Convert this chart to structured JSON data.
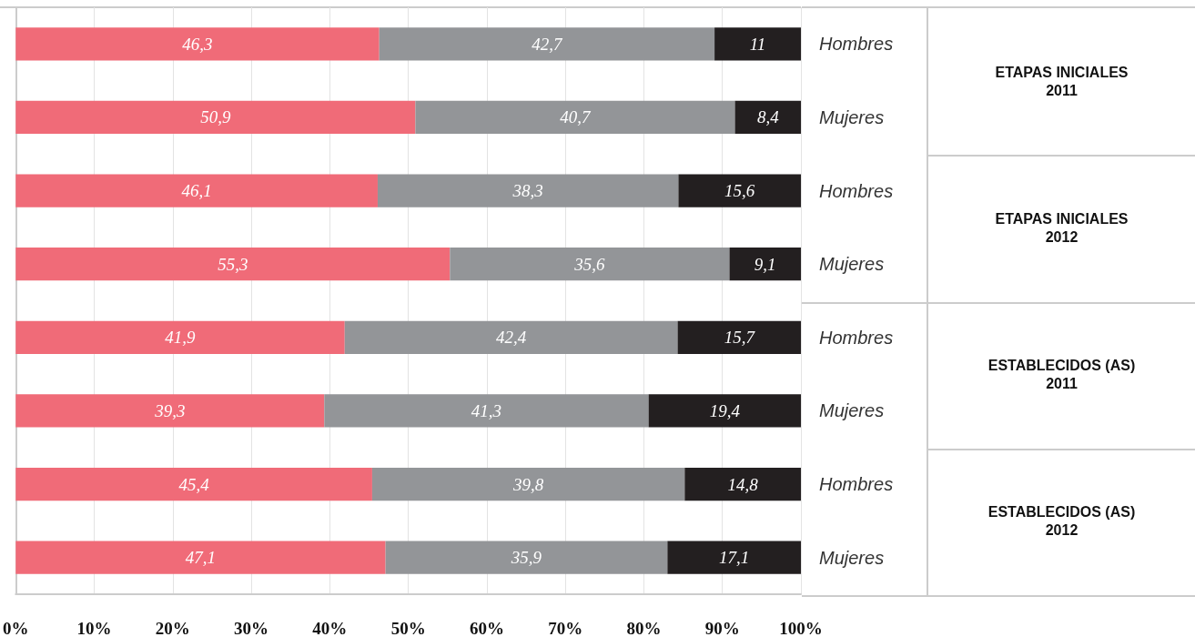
{
  "chart_data": {
    "type": "bar",
    "orientation": "horizontal",
    "stacked": true,
    "categories": [
      "Hombres",
      "Mujeres",
      "Hombres",
      "Mujeres",
      "Hombres",
      "Mujeres",
      "Hombres",
      "Mujeres"
    ],
    "series": [
      {
        "color": "#f06b78",
        "values": [
          46.3,
          50.9,
          46.1,
          55.3,
          41.9,
          39.3,
          45.4,
          47.1
        ],
        "value_labels": [
          "46,3",
          "50,9",
          "46,1",
          "55,3",
          "41,9",
          "39,3",
          "45,4",
          "47,1"
        ]
      },
      {
        "color": "#939598",
        "values": [
          42.7,
          40.7,
          38.3,
          35.6,
          42.4,
          41.3,
          39.8,
          35.9
        ],
        "value_labels": [
          "42,7",
          "40,7",
          "38,3",
          "35,6",
          "42,4",
          "41,3",
          "39,8",
          "35,9"
        ]
      },
      {
        "color": "#231f20",
        "values": [
          11,
          8.4,
          15.6,
          9.1,
          15.7,
          19.4,
          14.8,
          17.1
        ],
        "value_labels": [
          "11",
          "8,4",
          "15,6",
          "9,1",
          "15,7",
          "19,4",
          "14,8",
          "17,1"
        ]
      }
    ],
    "xlim": [
      0,
      100
    ],
    "xticks": [
      {
        "value": 0,
        "label": "0%"
      },
      {
        "value": 10,
        "label": "10%"
      },
      {
        "value": 20,
        "label": "20%"
      },
      {
        "value": 30,
        "label": "30%"
      },
      {
        "value": 40,
        "label": "40%"
      },
      {
        "value": 50,
        "label": "50%"
      },
      {
        "value": 60,
        "label": "60%"
      },
      {
        "value": 70,
        "label": "70%"
      },
      {
        "value": 80,
        "label": "80%"
      },
      {
        "value": 90,
        "label": "90%"
      },
      {
        "value": 100,
        "label": "100%"
      }
    ],
    "grid": "x",
    "annotations": [
      "ETAPAS INICIALES 2011",
      "ETAPAS INICIALES 2012",
      "ESTABLECIDOS (AS) 2011",
      "ESTABLECIDOS (AS) 2012"
    ]
  }
}
